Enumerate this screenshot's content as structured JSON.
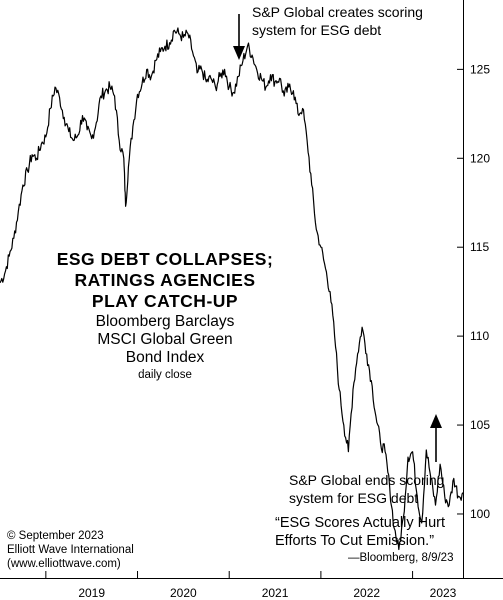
{
  "chart_data": {
    "type": "line",
    "title_lines": [
      "ESG DEBT COLLAPSES;",
      "RATINGS AGENCIES",
      "PLAY CATCH-UP"
    ],
    "subtitle_lines": [
      "Bloomberg Barclays",
      "MSCI Global Green",
      "Bond Index"
    ],
    "note": "daily close",
    "x_ticks": [
      "2019",
      "2020",
      "2021",
      "2022",
      "2023"
    ],
    "x_range": [
      2018.5,
      2023.55
    ],
    "y_ticks": [
      100,
      105,
      110,
      115,
      120,
      125
    ],
    "ylim": [
      96.4,
      128.9
    ],
    "grid": false,
    "series": [
      {
        "x": [
          2018.5,
          2018.55,
          2018.6,
          2018.65,
          2018.7,
          2018.75,
          2018.8,
          2018.85,
          2018.9,
          2018.95,
          2019.0,
          2019.05,
          2019.1,
          2019.15,
          2019.2,
          2019.25,
          2019.3,
          2019.35,
          2019.4,
          2019.45,
          2019.5,
          2019.55,
          2019.6,
          2019.65,
          2019.7,
          2019.75,
          2019.8,
          2019.85,
          2019.87,
          2019.9,
          2019.95,
          2020.0,
          2020.05,
          2020.1,
          2020.15,
          2020.2,
          2020.25,
          2020.3,
          2020.35,
          2020.4,
          2020.45,
          2020.5,
          2020.55,
          2020.6,
          2020.65,
          2020.7,
          2020.75,
          2020.8,
          2020.85,
          2020.9,
          2020.95,
          2021.0,
          2021.05,
          2021.1,
          2021.15,
          2021.2,
          2021.25,
          2021.3,
          2021.35,
          2021.4,
          2021.45,
          2021.5,
          2021.55,
          2021.6,
          2021.65,
          2021.7,
          2021.75,
          2021.8,
          2021.85,
          2021.9,
          2021.95,
          2022.0,
          2022.05,
          2022.1,
          2022.15,
          2022.2,
          2022.25,
          2022.3,
          2022.35,
          2022.4,
          2022.45,
          2022.5,
          2022.55,
          2022.6,
          2022.65,
          2022.7,
          2022.75,
          2022.8,
          2022.85,
          2022.9,
          2022.95,
          2023.0,
          2023.05,
          2023.1,
          2023.15,
          2023.2,
          2023.25,
          2023.3,
          2023.35,
          2023.4,
          2023.45,
          2023.5,
          2023.55
        ],
        "y": [
          113.0,
          113.5,
          114.5,
          115.5,
          117.0,
          118.5,
          119.3,
          120.2,
          120.0,
          120.8,
          121.2,
          122.8,
          124.0,
          123.4,
          122.3,
          121.5,
          121.0,
          121.3,
          122.4,
          121.6,
          121.1,
          122.0,
          123.5,
          123.8,
          124.0,
          123.5,
          121.0,
          120.0,
          117.3,
          119.5,
          121.8,
          123.6,
          124.2,
          125.0,
          124.6,
          125.5,
          126.0,
          126.3,
          126.5,
          127.2,
          127.0,
          126.8,
          127.0,
          126.0,
          124.8,
          125.0,
          124.3,
          124.5,
          124.0,
          124.6,
          125.0,
          124.0,
          123.7,
          124.6,
          125.5,
          126.3,
          125.8,
          125.0,
          124.5,
          124.0,
          124.7,
          124.3,
          124.5,
          123.5,
          124.0,
          123.8,
          122.5,
          122.8,
          121.0,
          118.5,
          116.0,
          115.0,
          113.8,
          112.5,
          110.0,
          107.0,
          105.0,
          103.5,
          107.0,
          109.0,
          110.5,
          109.0,
          107.5,
          105.5,
          104.0,
          103.5,
          101.5,
          99.2,
          98.0,
          99.8,
          103.2,
          103.5,
          101.0,
          99.5,
          103.6,
          102.0,
          100.5,
          102.8,
          101.0,
          100.5,
          102.0,
          101.0,
          101.2
        ]
      }
    ]
  },
  "annotations": {
    "top_line1": "S&P Global creates scoring",
    "top_line2": "system for ESG debt",
    "bottom_line1": "S&P Global ends scoring",
    "bottom_line2": "system for ESG debt",
    "quote_line1": "“ESG Scores Actually Hurt",
    "quote_line2": "Efforts To Cut Emission.”",
    "quote_source": "—Bloomberg, 8/9/23"
  },
  "footer": {
    "copyright": "© September 2023",
    "company": "Elliott Wave International",
    "url": "(www.elliottwave.com)"
  }
}
